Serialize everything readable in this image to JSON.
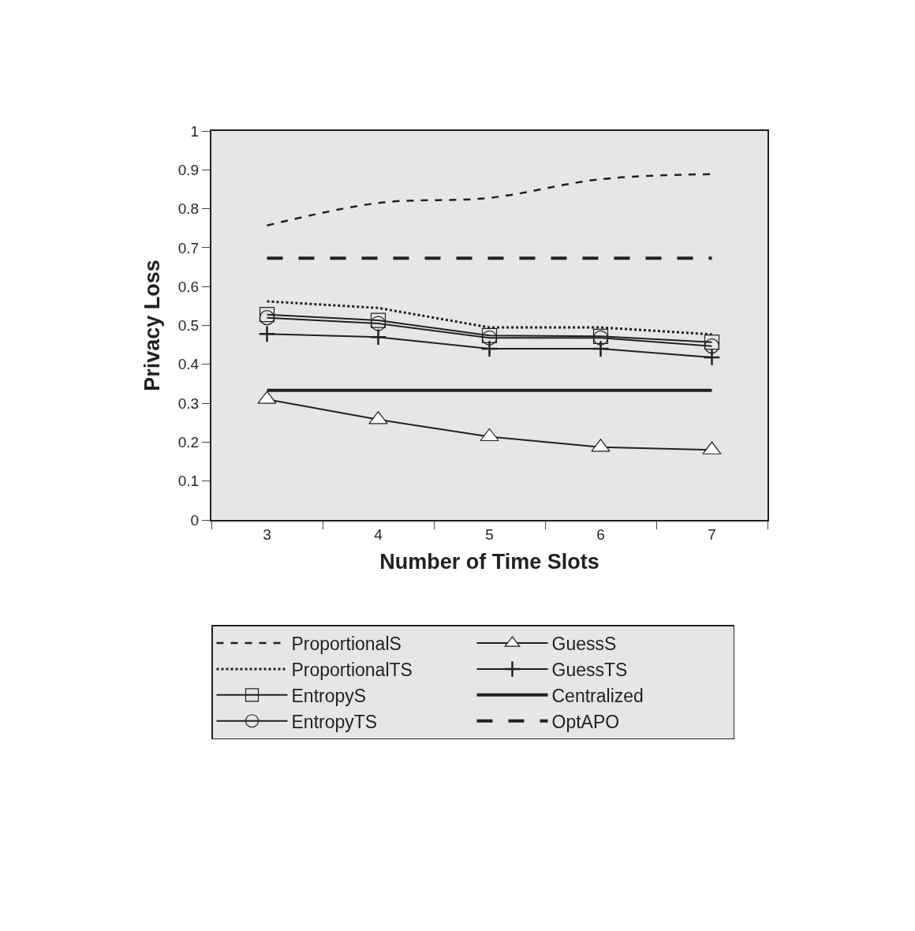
{
  "chart_data": {
    "type": "line",
    "xlabel": "Number of Time Slots",
    "ylabel": "Privacy Loss",
    "categories": [
      "3",
      "4",
      "5",
      "6",
      "7"
    ],
    "ylim": [
      0,
      1
    ],
    "yticks": [
      0,
      0.1,
      0.2,
      0.3,
      0.4,
      0.5,
      0.6,
      0.7,
      0.8,
      0.9,
      1
    ],
    "grid": false,
    "legend": "bottom",
    "series": [
      {
        "name": "ProportionalS",
        "color": "#231f20",
        "line_style": "dashed",
        "marker": "none",
        "values": [
          0.757,
          0.815,
          0.828,
          0.876,
          0.889
        ]
      },
      {
        "name": "ProportionalTS",
        "color": "#231f20",
        "line_style": "dotted",
        "marker": "none",
        "values": [
          0.562,
          0.545,
          0.495,
          0.495,
          0.477
        ]
      },
      {
        "name": "EntropyS",
        "color": "#231f20",
        "line_style": "solid",
        "marker": "square",
        "values": [
          0.528,
          0.513,
          0.474,
          0.472,
          0.457
        ]
      },
      {
        "name": "EntropyTS",
        "color": "#231f20",
        "line_style": "solid",
        "marker": "circle",
        "values": [
          0.52,
          0.505,
          0.468,
          0.468,
          0.447
        ]
      },
      {
        "name": "GuessS",
        "color": "#231f20",
        "line_style": "solid",
        "marker": "triangle",
        "values": [
          0.31,
          0.258,
          0.214,
          0.187,
          0.18
        ]
      },
      {
        "name": "GuessTS",
        "color": "#231f20",
        "line_style": "solid",
        "marker": "cross",
        "values": [
          0.478,
          0.47,
          0.44,
          0.44,
          0.418
        ]
      },
      {
        "name": "Centralized",
        "color": "#231f20",
        "line_style": "solid",
        "marker": "none",
        "values": [
          0.333,
          0.333,
          0.333,
          0.333,
          0.333
        ]
      },
      {
        "name": "OptAPO",
        "color": "#231f20",
        "line_style": "dashed",
        "marker": "none",
        "values": [
          0.673,
          0.673,
          0.673,
          0.673,
          0.673
        ]
      }
    ]
  }
}
